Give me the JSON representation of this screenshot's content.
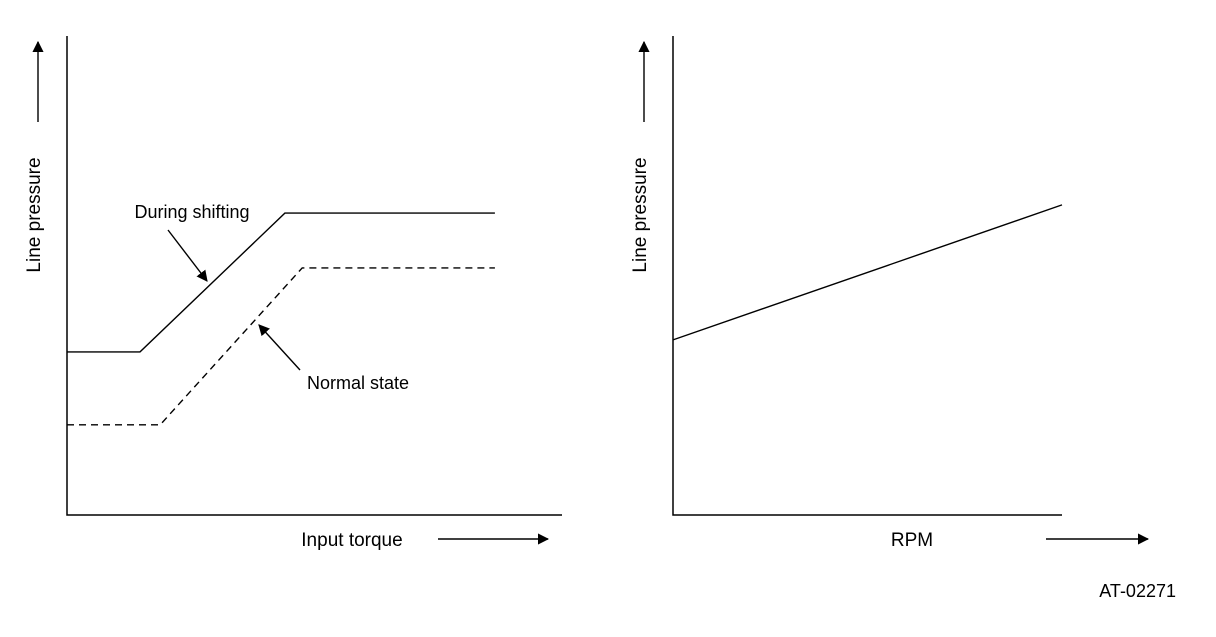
{
  "figure": {
    "code": "AT-02271"
  },
  "colors": {
    "line": "#000000",
    "background": "#ffffff"
  },
  "chart_data": [
    {
      "type": "line",
      "title": "",
      "xlabel": "Input torque",
      "ylabel": "Line pressure",
      "xlim": [
        0,
        1
      ],
      "ylim": [
        0,
        1
      ],
      "grid": "off",
      "tick_labels": "none (qualitative diagram)",
      "annotations": [
        {
          "label": "During shifting",
          "points_to": "solid line, rising segment"
        },
        {
          "label": "Normal state",
          "points_to": "dashed line, rising segment"
        }
      ],
      "series": [
        {
          "name": "During shifting",
          "line_style": "solid",
          "x": [
            0,
            0.148,
            0.442,
            0.868
          ],
          "y": [
            0.342,
            0.342,
            0.633,
            0.633
          ]
        },
        {
          "name": "Normal state",
          "line_style": "dashed",
          "x": [
            0,
            0.189,
            0.477,
            0.868
          ],
          "y": [
            0.189,
            0.189,
            0.518,
            0.518
          ]
        }
      ]
    },
    {
      "type": "line",
      "title": "",
      "xlabel": "RPM",
      "ylabel": "Line pressure",
      "xlim": [
        0,
        1
      ],
      "ylim": [
        0,
        1
      ],
      "grid": "off",
      "tick_labels": "none (qualitative diagram)",
      "annotations": [],
      "series": [
        {
          "name": "Line pressure vs RPM",
          "line_style": "solid",
          "x": [
            0,
            1
          ],
          "y": [
            0.367,
            0.65
          ]
        }
      ]
    }
  ]
}
